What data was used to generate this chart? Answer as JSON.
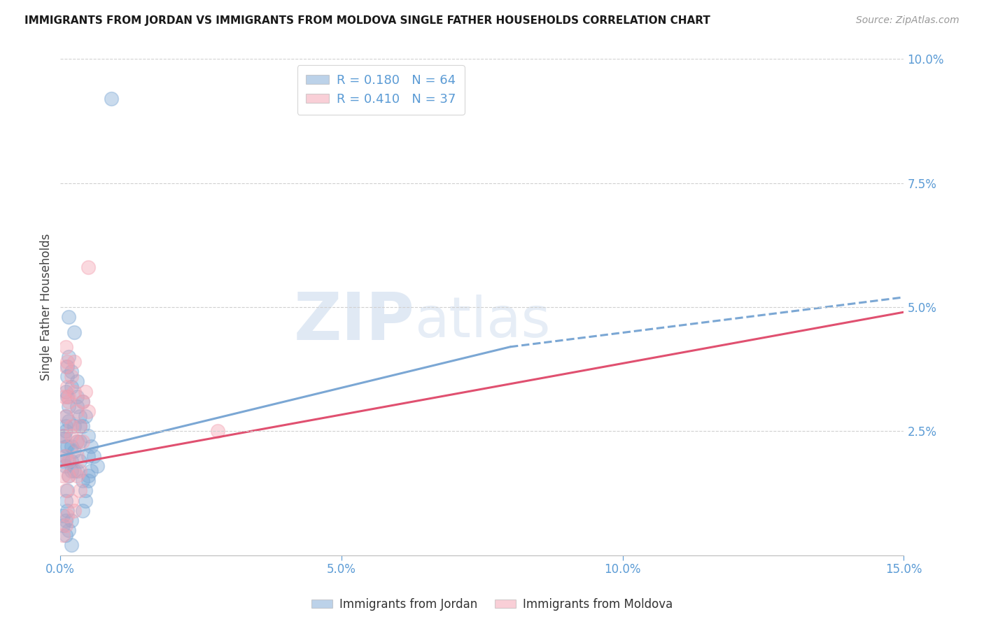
{
  "title": "IMMIGRANTS FROM JORDAN VS IMMIGRANTS FROM MOLDOVA SINGLE FATHER HOUSEHOLDS CORRELATION CHART",
  "source": "Source: ZipAtlas.com",
  "ylabel": "Single Father Households",
  "xlim": [
    0.0,
    0.15
  ],
  "ylim": [
    0.0,
    0.1
  ],
  "yticks": [
    0.025,
    0.05,
    0.075,
    0.1
  ],
  "xticks": [
    0.0,
    0.05,
    0.1,
    0.15
  ],
  "jordan_R": 0.18,
  "jordan_N": 64,
  "moldova_R": 0.41,
  "moldova_N": 37,
  "jordan_color": "#7BA7D4",
  "moldova_color": "#F4A0B0",
  "jordan_scatter": [
    [
      0.0005,
      0.024
    ],
    [
      0.001,
      0.022
    ],
    [
      0.001,
      0.028
    ],
    [
      0.0008,
      0.02
    ],
    [
      0.0015,
      0.03
    ],
    [
      0.001,
      0.025
    ],
    [
      0.0008,
      0.018
    ],
    [
      0.002,
      0.022
    ],
    [
      0.0005,
      0.019
    ],
    [
      0.001,
      0.026
    ],
    [
      0.0012,
      0.032
    ],
    [
      0.0007,
      0.024
    ],
    [
      0.0015,
      0.027
    ],
    [
      0.002,
      0.034
    ],
    [
      0.0012,
      0.038
    ],
    [
      0.003,
      0.03
    ],
    [
      0.0025,
      0.026
    ],
    [
      0.003,
      0.032
    ],
    [
      0.0035,
      0.028
    ],
    [
      0.004,
      0.031
    ],
    [
      0.001,
      0.033
    ],
    [
      0.0012,
      0.022
    ],
    [
      0.0015,
      0.019
    ],
    [
      0.002,
      0.017
    ],
    [
      0.0025,
      0.021
    ],
    [
      0.003,
      0.023
    ],
    [
      0.0035,
      0.026
    ],
    [
      0.001,
      0.011
    ],
    [
      0.0012,
      0.013
    ],
    [
      0.0015,
      0.016
    ],
    [
      0.002,
      0.019
    ],
    [
      0.0025,
      0.017
    ],
    [
      0.0015,
      0.04
    ],
    [
      0.002,
      0.037
    ],
    [
      0.0012,
      0.036
    ],
    [
      0.003,
      0.035
    ],
    [
      0.0035,
      0.023
    ],
    [
      0.004,
      0.026
    ],
    [
      0.0045,
      0.028
    ],
    [
      0.005,
      0.024
    ],
    [
      0.0055,
      0.022
    ],
    [
      0.006,
      0.02
    ],
    [
      0.0065,
      0.018
    ],
    [
      0.005,
      0.016
    ],
    [
      0.003,
      0.017
    ],
    [
      0.0035,
      0.019
    ],
    [
      0.004,
      0.015
    ],
    [
      0.0045,
      0.013
    ],
    [
      0.005,
      0.015
    ],
    [
      0.0005,
      0.008
    ],
    [
      0.001,
      0.007
    ],
    [
      0.0012,
      0.009
    ],
    [
      0.0015,
      0.005
    ],
    [
      0.002,
      0.007
    ],
    [
      0.004,
      0.009
    ],
    [
      0.0045,
      0.011
    ],
    [
      0.0025,
      0.045
    ],
    [
      0.0015,
      0.048
    ],
    [
      0.0005,
      0.006
    ],
    [
      0.001,
      0.004
    ],
    [
      0.005,
      0.02
    ],
    [
      0.0055,
      0.017
    ],
    [
      0.009,
      0.092
    ],
    [
      0.002,
      0.002
    ]
  ],
  "moldova_scatter": [
    [
      0.0005,
      0.024
    ],
    [
      0.001,
      0.038
    ],
    [
      0.0012,
      0.034
    ],
    [
      0.0007,
      0.032
    ],
    [
      0.0015,
      0.032
    ],
    [
      0.001,
      0.028
    ],
    [
      0.0008,
      0.02
    ],
    [
      0.002,
      0.024
    ],
    [
      0.0005,
      0.016
    ],
    [
      0.001,
      0.042
    ],
    [
      0.0012,
      0.039
    ],
    [
      0.0015,
      0.031
    ],
    [
      0.002,
      0.026
    ],
    [
      0.0025,
      0.033
    ],
    [
      0.003,
      0.029
    ],
    [
      0.0015,
      0.016
    ],
    [
      0.001,
      0.013
    ],
    [
      0.002,
      0.011
    ],
    [
      0.0025,
      0.009
    ],
    [
      0.003,
      0.016
    ],
    [
      0.0035,
      0.013
    ],
    [
      0.001,
      0.006
    ],
    [
      0.0012,
      0.008
    ],
    [
      0.0015,
      0.019
    ],
    [
      0.0005,
      0.004
    ],
    [
      0.002,
      0.036
    ],
    [
      0.0025,
      0.039
    ],
    [
      0.003,
      0.023
    ],
    [
      0.0035,
      0.026
    ],
    [
      0.004,
      0.031
    ],
    [
      0.0045,
      0.033
    ],
    [
      0.005,
      0.029
    ],
    [
      0.004,
      0.023
    ],
    [
      0.005,
      0.058
    ],
    [
      0.028,
      0.025
    ],
    [
      0.003,
      0.02
    ],
    [
      0.0035,
      0.017
    ]
  ],
  "jordan_line": [
    [
      0.0,
      0.02
    ],
    [
      0.08,
      0.042
    ]
  ],
  "jordan_line_dashed": [
    [
      0.08,
      0.042
    ],
    [
      0.15,
      0.052
    ]
  ],
  "moldova_line": [
    [
      0.0,
      0.018
    ],
    [
      0.15,
      0.049
    ]
  ],
  "watermark_zip": "ZIP",
  "watermark_atlas": "atlas",
  "background_color": "#FFFFFF",
  "axis_color": "#5B9BD5",
  "grid_color": "#D0D0D0",
  "title_fontsize": 11,
  "tick_fontsize": 12,
  "ylabel_fontsize": 12
}
